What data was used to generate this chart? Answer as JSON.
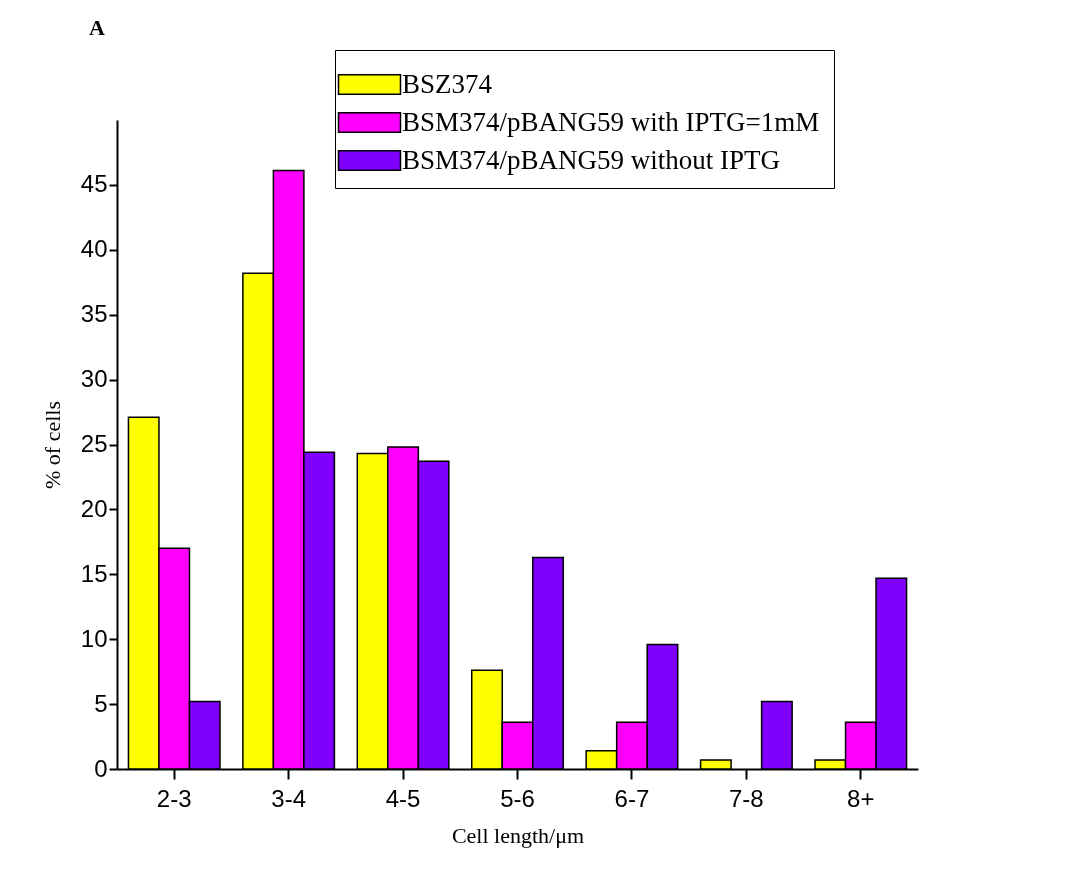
{
  "chart_data": {
    "type": "bar",
    "title": "A",
    "xlabel": "Cell length/μm",
    "ylabel": "% of cells",
    "categories": [
      "2-3",
      "3-4",
      "4-5",
      "5-6",
      "6-7",
      "7-8",
      "8+"
    ],
    "series": [
      {
        "name": "BSZ374",
        "color": "#ffff00",
        "values": [
          27.1,
          38.2,
          24.3,
          7.6,
          1.4,
          0.7,
          0.7
        ]
      },
      {
        "name": "BSM374/pBANG59 with IPTG=1mM",
        "color": "#ff00ff",
        "values": [
          17.0,
          46.1,
          24.8,
          3.6,
          3.6,
          0,
          3.6
        ]
      },
      {
        "name": "BSM374/pBANG59 without IPTG",
        "color": "#8000ff",
        "values": [
          5.2,
          24.4,
          23.7,
          16.3,
          9.6,
          5.2,
          14.7
        ]
      }
    ],
    "ylim": [
      0,
      50
    ],
    "yticks": [
      0,
      5,
      10,
      15,
      20,
      25,
      30,
      35,
      40,
      45
    ],
    "grid": false,
    "legend": "top right"
  }
}
